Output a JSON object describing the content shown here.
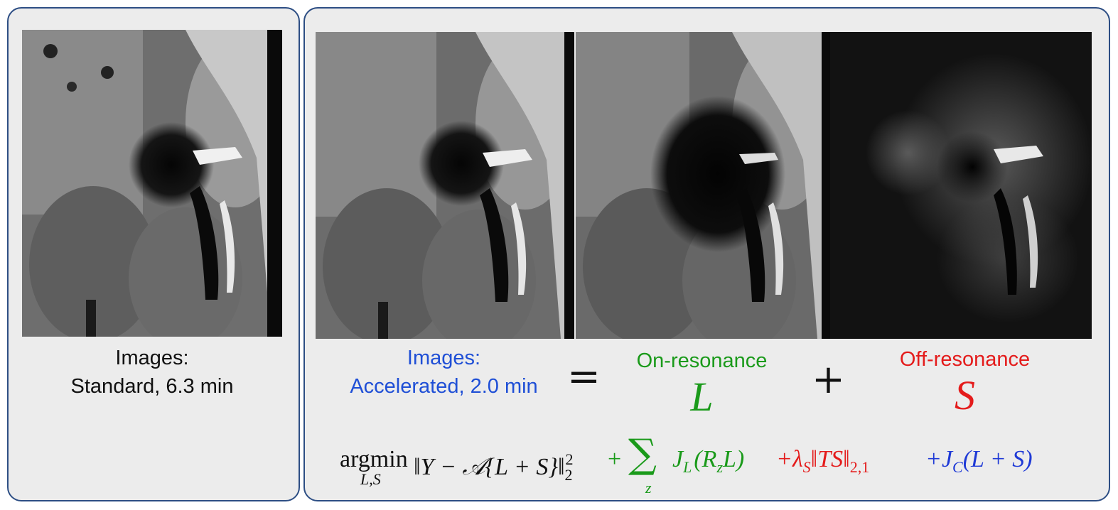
{
  "panels": {
    "standard": {
      "caption_line1": "Images:",
      "caption_line2": "Standard, 6.3 min",
      "caption_color": "#111111"
    },
    "accelerated": {
      "caption_line1": "Images:",
      "caption_line2": "Accelerated, 2.0 min",
      "caption_color": "#1f4fd6"
    }
  },
  "decomposition": {
    "equals_symbol": "=",
    "plus_symbol": "+",
    "on_resonance": {
      "label": "On-resonance",
      "symbol": "L",
      "color": "#1a9a1a"
    },
    "off_resonance": {
      "label": "Off-resonance",
      "symbol": "S",
      "color": "#e41b1b"
    }
  },
  "equation": {
    "argmin": "argmin",
    "argmin_sub": "L,S",
    "data_term": "‖Y − 𝒜{L + S}‖",
    "data_sub": "2",
    "data_sup": "2",
    "sum_symbol": "∑",
    "sum_index": "z",
    "lowrank_term": "J",
    "lowrank_sub": "L",
    "lowrank_arg": "(R",
    "lowrank_arg_sub": "z",
    "lowrank_arg_end": "L)",
    "sparse_plus": "+λ",
    "sparse_sub": "S",
    "sparse_term": "‖TS‖",
    "sparse_norm_sub": "2,1",
    "consistency_term": "+J",
    "consistency_sub": "C",
    "consistency_arg": "(L + S)",
    "colors": {
      "data": "#111111",
      "lowrank": "#1a9a1a",
      "sparse": "#e41b1b",
      "consistency": "#1f3ad6"
    }
  }
}
